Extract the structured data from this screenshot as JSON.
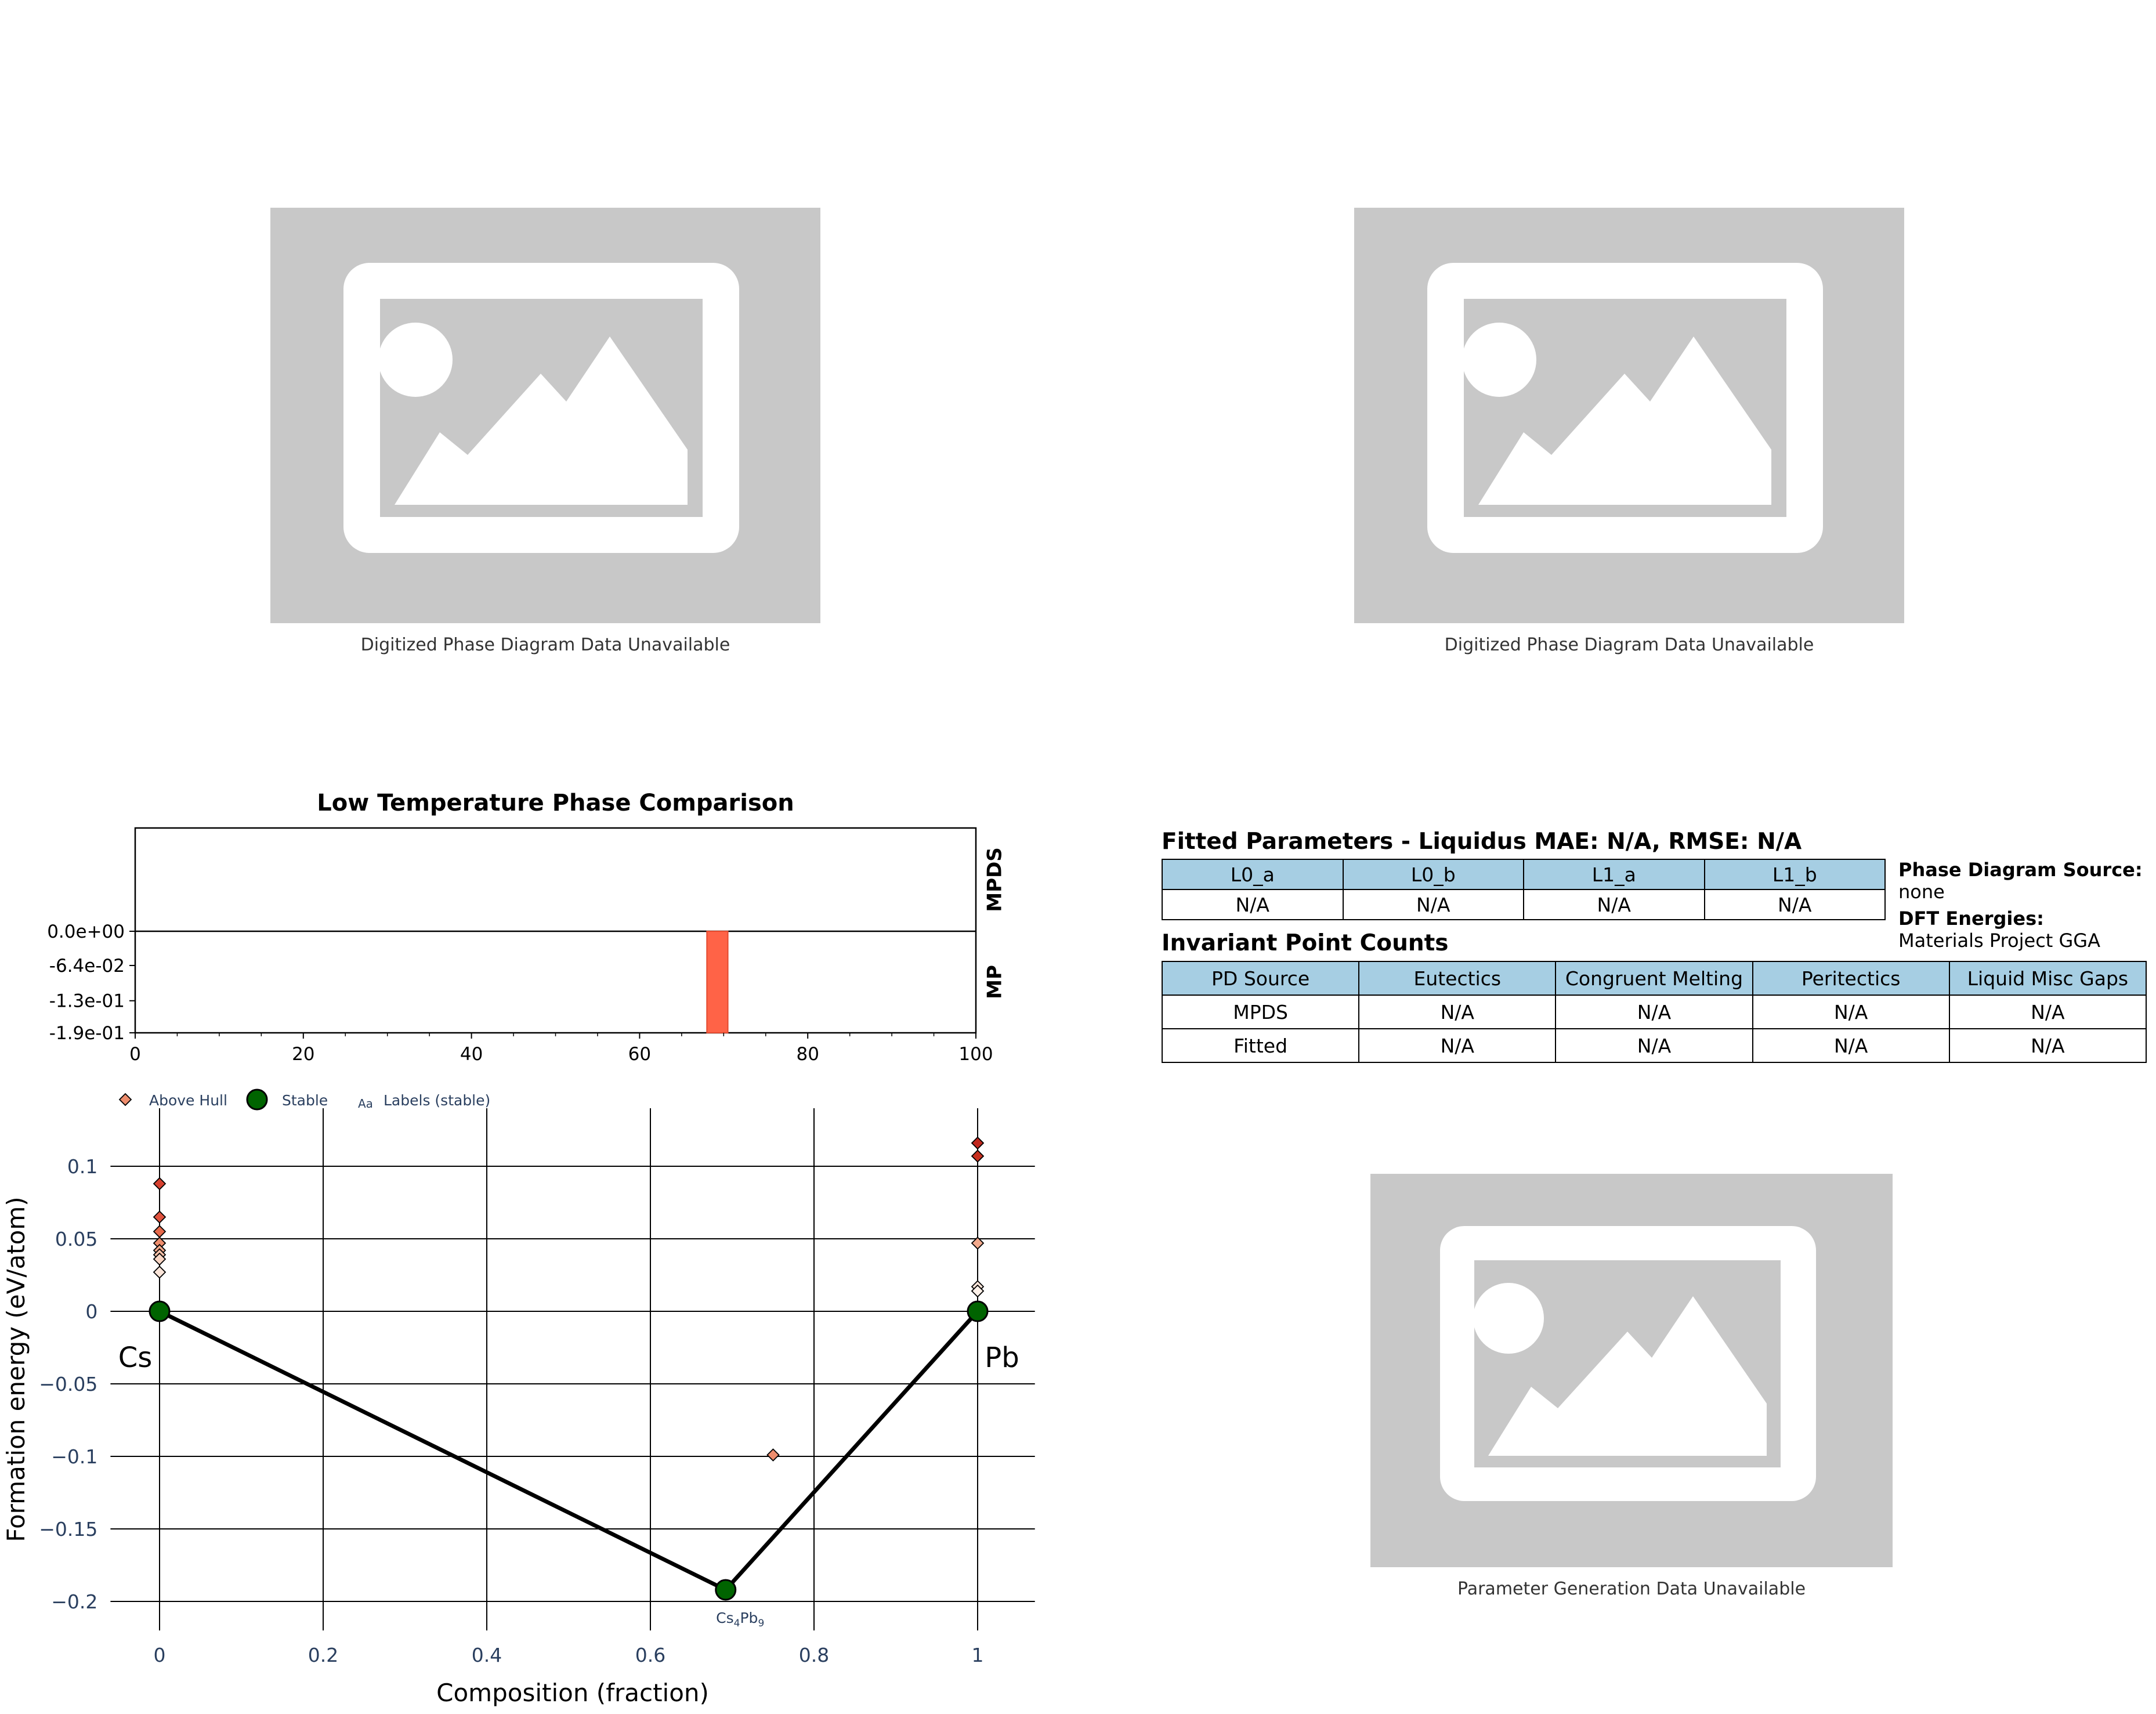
{
  "placeholders": {
    "top_left_caption": "Digitized Phase Diagram Data Unavailable",
    "top_right_caption": "Digitized Phase Diagram Data Unavailable",
    "bottom_right_caption": "Parameter Generation Data Unavailable"
  },
  "fitted_params": {
    "title": "Fitted Parameters - Liquidus MAE: N/A, RMSE: N/A",
    "headers": [
      "L0_a",
      "L0_b",
      "L1_a",
      "L1_b"
    ],
    "values": [
      "N/A",
      "N/A",
      "N/A",
      "N/A"
    ]
  },
  "info": {
    "pd_source_label": "Phase Diagram Source:",
    "pd_source_value": "none",
    "dft_label": "DFT Energies:",
    "dft_value": "Materials Project GGA"
  },
  "invariant": {
    "title": "Invariant Point Counts",
    "headers": [
      "PD Source",
      "Eutectics",
      "Congruent Melting",
      "Peritectics",
      "Liquid Misc Gaps"
    ],
    "rows": [
      [
        "MPDS",
        "N/A",
        "N/A",
        "N/A",
        "N/A"
      ],
      [
        "Fitted",
        "N/A",
        "N/A",
        "N/A",
        "N/A"
      ]
    ]
  },
  "colors": {
    "placeholder_bg": "#c8c8c8",
    "table_header": "#a6cee3",
    "bar": "#ff6347",
    "stable": "#006400",
    "above_hull": "#e0533f",
    "hull_line": "#000000"
  },
  "chart_data": [
    {
      "type": "bar",
      "title": "Low Temperature Phase Comparison",
      "row_labels": [
        "MPDS",
        "MP"
      ],
      "xlim": [
        0,
        100
      ],
      "xticks": [
        "0",
        "20",
        "40",
        "60",
        "80",
        "100"
      ],
      "ylim": [
        -0.19,
        0.0
      ],
      "yticks": [
        "0.0e+00",
        "-6.4e-02",
        "-1.3e-01",
        "-1.9e-01"
      ],
      "ytick_values": [
        0.0,
        -0.064,
        -0.13,
        -0.19
      ],
      "series": [
        {
          "name": "MP",
          "bars": [
            {
              "x_start": 68,
              "x_end": 70.5,
              "value": -0.19
            }
          ]
        }
      ]
    },
    {
      "type": "scatter",
      "xlabel": "Composition (fraction)",
      "ylabel": "Formation energy (eV/atom)",
      "xlim": [
        -0.06,
        1.07
      ],
      "ylim": [
        -0.22,
        0.14
      ],
      "xticks": [
        "0",
        "0.2",
        "0.4",
        "0.6",
        "0.8",
        "1"
      ],
      "xtick_values": [
        0,
        0.2,
        0.4,
        0.6,
        0.8,
        1
      ],
      "yticks": [
        "0.1",
        "0.05",
        "0",
        "−0.05",
        "−0.1",
        "−0.15",
        "−0.2"
      ],
      "ytick_values": [
        0.1,
        0.05,
        0,
        -0.05,
        -0.1,
        -0.15,
        -0.2
      ],
      "legend": [
        "Above Hull",
        "Stable",
        "Labels (stable)"
      ],
      "legend_glyph": "Aa",
      "legend_position": "top-left",
      "grid": true,
      "endpoint_labels": [
        "Cs",
        "Pb"
      ],
      "hull": [
        {
          "x": 0,
          "y": 0,
          "label": ""
        },
        {
          "x": 0.692,
          "y": -0.192,
          "label": "Cs4Pb9"
        },
        {
          "x": 1,
          "y": 0,
          "label": ""
        }
      ],
      "stable_label": {
        "base": "Cs",
        "sub1": "4",
        "mid": "Pb",
        "sub2": "9"
      },
      "above_hull": [
        {
          "x": 0,
          "y": 0.088,
          "color": "#d6402f"
        },
        {
          "x": 0,
          "y": 0.065,
          "color": "#e0533f"
        },
        {
          "x": 0,
          "y": 0.055,
          "color": "#e66a4c"
        },
        {
          "x": 0,
          "y": 0.047,
          "color": "#ee8d6d"
        },
        {
          "x": 0,
          "y": 0.042,
          "color": "#f2a98c"
        },
        {
          "x": 0,
          "y": 0.039,
          "color": "#f6c0a7"
        },
        {
          "x": 0,
          "y": 0.036,
          "color": "#f9d5c3"
        },
        {
          "x": 0,
          "y": 0.027,
          "color": "#fbe5d9"
        },
        {
          "x": 0.75,
          "y": -0.099,
          "color": "#ee8d6d"
        },
        {
          "x": 1,
          "y": 0.116,
          "color": "#c0281e"
        },
        {
          "x": 1,
          "y": 0.107,
          "color": "#c8301f"
        },
        {
          "x": 1,
          "y": 0.047,
          "color": "#f2a98c"
        },
        {
          "x": 1,
          "y": 0.017,
          "color": "#fbe5d9"
        },
        {
          "x": 1,
          "y": 0.014,
          "color": "#fdf0e8"
        }
      ]
    }
  ]
}
